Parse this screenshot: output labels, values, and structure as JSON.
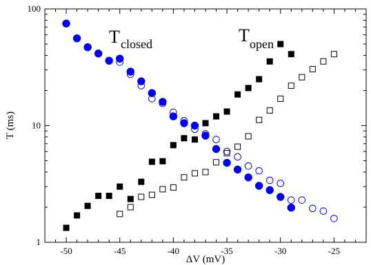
{
  "chart_data": {
    "type": "scatter",
    "xlabel": "ΔV  (mV)",
    "ylabel": "T (ms)",
    "xlim": [
      -52,
      -22
    ],
    "ylim": [
      1,
      100
    ],
    "yscale": "log",
    "grid": false,
    "x_ticks": [
      -50,
      -45,
      -40,
      -35,
      -30,
      -25
    ],
    "x_tick_labels": [
      "-50",
      "-45",
      "-40",
      "-35",
      "-30",
      "-25"
    ],
    "y_ticks": [
      1,
      10,
      100
    ],
    "y_tick_labels": [
      "1",
      "10",
      "100"
    ],
    "annotations": [
      {
        "main": "T",
        "sub": "closed"
      },
      {
        "main": "T",
        "sub": "open"
      }
    ],
    "colors": {
      "filled_circle": "#0000ee",
      "open_circle": "#0000ee",
      "square": "#000000"
    },
    "series": [
      {
        "marker": "filled-circle",
        "x": [
          -50,
          -49,
          -48,
          -47,
          -46,
          -45,
          -44,
          -43,
          -42,
          -41,
          -40,
          -39,
          -38,
          -37,
          -36,
          -35,
          -34,
          -33,
          -32,
          -31,
          -30,
          -29
        ],
        "y": [
          75,
          56,
          47,
          41.5,
          36,
          37.5,
          29,
          24,
          19,
          16,
          12,
          10.5,
          10,
          8.2,
          6.3,
          4.8,
          4.2,
          3.6,
          3.05,
          2.8,
          2.45,
          1.98
        ]
      },
      {
        "marker": "open-circle",
        "x": [
          -45,
          -44,
          -43,
          -42,
          -41,
          -40,
          -39,
          -38,
          -37,
          -36,
          -35,
          -34,
          -33,
          -32,
          -31,
          -30,
          -29,
          -28,
          -27,
          -26,
          -25
        ],
        "y": [
          35,
          27.5,
          22,
          17,
          15.5,
          13,
          11,
          9.3,
          8.5,
          7.6,
          6,
          5.4,
          4.5,
          4.1,
          3.4,
          3.2,
          2.3,
          2.3,
          1.95,
          1.85,
          1.6
        ]
      },
      {
        "marker": "filled-square",
        "x": [
          -50,
          -49,
          -48,
          -47,
          -46,
          -45,
          -44,
          -43,
          -42,
          -41,
          -40,
          -39,
          -38,
          -37,
          -36,
          -35,
          -34,
          -33,
          -32,
          -31,
          -30,
          -29
        ],
        "y": [
          1.33,
          1.7,
          2.05,
          2.5,
          2.5,
          3,
          2.35,
          3.3,
          4.9,
          4.95,
          6.8,
          7.8,
          7.6,
          10.5,
          12,
          13.2,
          18.5,
          21,
          25,
          35.5,
          50,
          41
        ]
      },
      {
        "marker": "open-square",
        "x": [
          -45,
          -44,
          -43,
          -42,
          -41,
          -40,
          -39,
          -38,
          -37,
          -36,
          -35,
          -34,
          -33,
          -32,
          -31,
          -30,
          -29,
          -28,
          -27,
          -26,
          -25
        ],
        "y": [
          1.75,
          2,
          2.45,
          2.55,
          2.85,
          2.95,
          3.6,
          3.9,
          4,
          4.85,
          5.8,
          6.6,
          8.1,
          11.2,
          13.5,
          17,
          22,
          26,
          30.5,
          35.5,
          41
        ]
      }
    ]
  }
}
